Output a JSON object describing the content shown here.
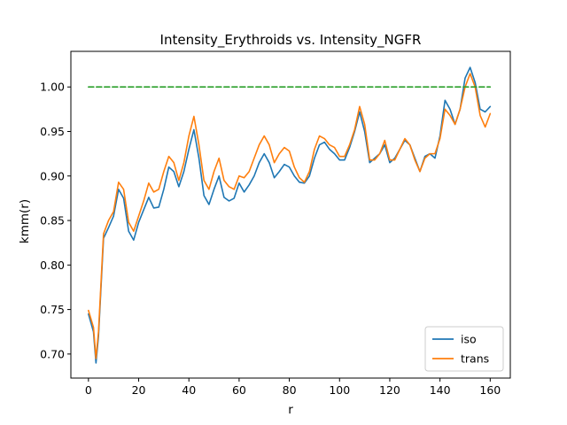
{
  "chart_data": {
    "type": "line",
    "title": "Intensity_Erythroids vs. Intensity_NGFR",
    "xlabel": "r",
    "ylabel": "kmm(r)",
    "xlim": [
      -7,
      168
    ],
    "ylim": [
      0.673,
      1.04
    ],
    "xticks": [
      0,
      20,
      40,
      60,
      80,
      100,
      120,
      140,
      160
    ],
    "yticks": [
      0.7,
      0.75,
      0.8,
      0.85,
      0.9,
      0.95,
      1.0
    ],
    "xtick_labels": [
      "0",
      "20",
      "40",
      "60",
      "80",
      "100",
      "120",
      "140",
      "160"
    ],
    "ytick_labels": [
      "0.70",
      "0.75",
      "0.80",
      "0.85",
      "0.90",
      "0.95",
      "1.00"
    ],
    "grid": false,
    "legend_position": "bottom-right",
    "x": [
      0,
      2,
      3,
      4,
      6,
      8,
      10,
      12,
      14,
      16,
      18,
      20,
      22,
      24,
      26,
      28,
      30,
      32,
      34,
      36,
      38,
      40,
      42,
      44,
      46,
      48,
      50,
      52,
      54,
      56,
      58,
      60,
      62,
      64,
      66,
      68,
      70,
      72,
      74,
      76,
      78,
      80,
      82,
      84,
      86,
      88,
      90,
      92,
      94,
      96,
      98,
      100,
      102,
      104,
      106,
      108,
      110,
      112,
      114,
      116,
      118,
      120,
      122,
      124,
      126,
      128,
      130,
      132,
      134,
      136,
      138,
      140,
      142,
      144,
      146,
      148,
      150,
      152,
      154,
      156,
      158,
      160
    ],
    "series": [
      {
        "name": "iso",
        "color": "#1f77b4",
        "values": [
          0.745,
          0.725,
          0.69,
          0.72,
          0.83,
          0.842,
          0.855,
          0.885,
          0.875,
          0.838,
          0.828,
          0.848,
          0.862,
          0.876,
          0.864,
          0.865,
          0.885,
          0.91,
          0.905,
          0.888,
          0.905,
          0.93,
          0.952,
          0.92,
          0.878,
          0.868,
          0.885,
          0.9,
          0.876,
          0.872,
          0.875,
          0.892,
          0.882,
          0.89,
          0.9,
          0.915,
          0.925,
          0.915,
          0.898,
          0.905,
          0.913,
          0.91,
          0.9,
          0.893,
          0.892,
          0.9,
          0.92,
          0.935,
          0.938,
          0.93,
          0.925,
          0.918,
          0.918,
          0.932,
          0.95,
          0.972,
          0.95,
          0.915,
          0.92,
          0.925,
          0.935,
          0.915,
          0.92,
          0.93,
          0.94,
          0.935,
          0.92,
          0.905,
          0.922,
          0.925,
          0.92,
          0.945,
          0.985,
          0.975,
          0.958,
          0.975,
          1.01,
          1.022,
          1.005,
          0.975,
          0.972,
          0.978
        ]
      },
      {
        "name": "trans",
        "color": "#ff7f0e",
        "values": [
          0.749,
          0.73,
          0.695,
          0.725,
          0.835,
          0.85,
          0.86,
          0.893,
          0.885,
          0.848,
          0.838,
          0.855,
          0.872,
          0.892,
          0.882,
          0.885,
          0.905,
          0.922,
          0.915,
          0.895,
          0.915,
          0.945,
          0.967,
          0.935,
          0.895,
          0.885,
          0.905,
          0.92,
          0.895,
          0.888,
          0.885,
          0.9,
          0.898,
          0.905,
          0.92,
          0.935,
          0.945,
          0.935,
          0.915,
          0.925,
          0.932,
          0.928,
          0.91,
          0.898,
          0.893,
          0.905,
          0.93,
          0.945,
          0.942,
          0.935,
          0.932,
          0.922,
          0.922,
          0.935,
          0.952,
          0.978,
          0.958,
          0.918,
          0.918,
          0.925,
          0.94,
          0.918,
          0.918,
          0.93,
          0.942,
          0.935,
          0.918,
          0.905,
          0.92,
          0.925,
          0.925,
          0.942,
          0.975,
          0.968,
          0.958,
          0.975,
          1.0,
          1.015,
          1.0,
          0.968,
          0.955,
          0.97
        ]
      },
      {
        "name": "",
        "color": "#2ca02c",
        "dashed": true,
        "x": [
          0,
          160
        ],
        "values": [
          1.0,
          1.0
        ]
      }
    ]
  }
}
